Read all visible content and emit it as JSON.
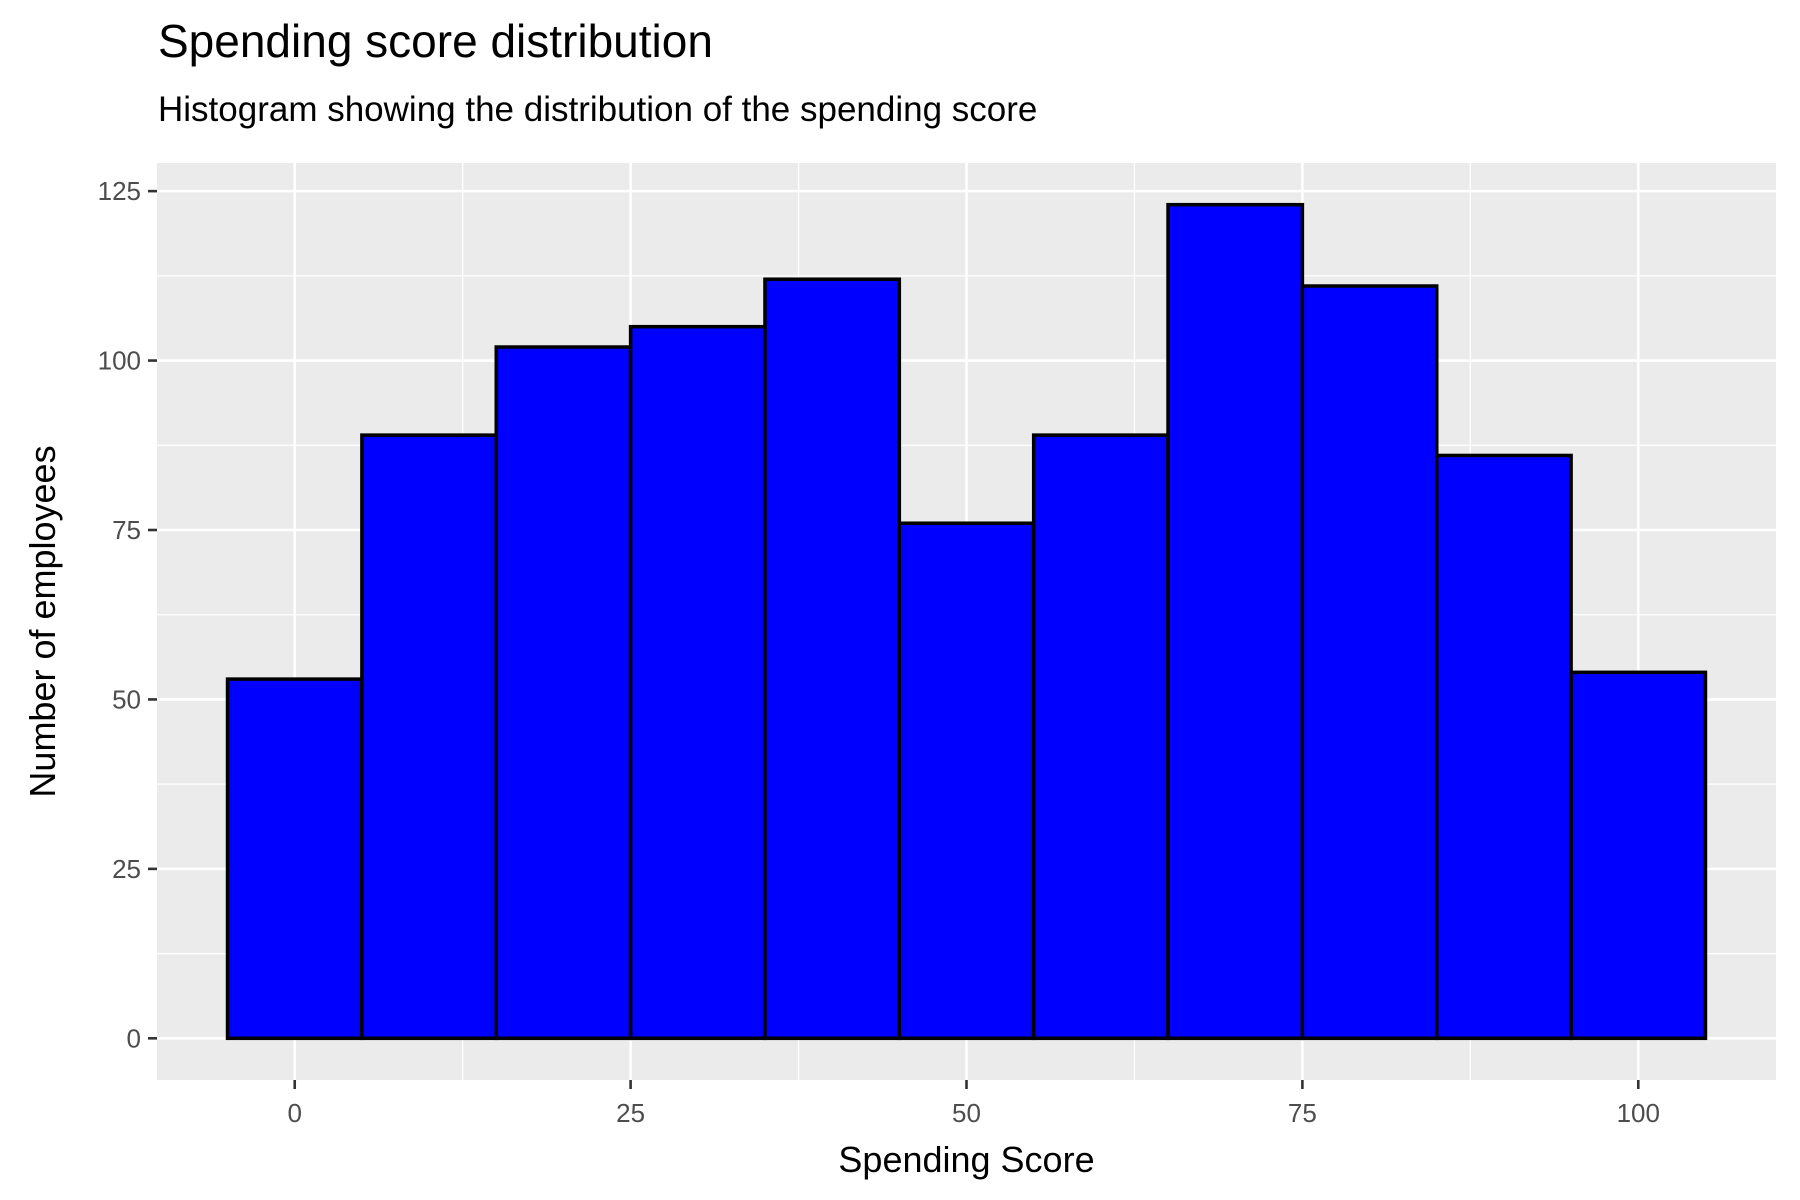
{
  "chart_data": {
    "type": "bar",
    "title": "Spending score distribution",
    "subtitle": "Histogram showing the distribution of the spending score",
    "xlabel": "Spending Score",
    "ylabel": "Number of employees",
    "bin_width": 10,
    "bins": [
      {
        "start": -5,
        "end": 5,
        "value": 53
      },
      {
        "start": 5,
        "end": 15,
        "value": 89
      },
      {
        "start": 15,
        "end": 25,
        "value": 102
      },
      {
        "start": 25,
        "end": 35,
        "value": 105
      },
      {
        "start": 35,
        "end": 45,
        "value": 112
      },
      {
        "start": 45,
        "end": 55,
        "value": 76
      },
      {
        "start": 55,
        "end": 65,
        "value": 89
      },
      {
        "start": 65,
        "end": 75,
        "value": 123
      },
      {
        "start": 75,
        "end": 85,
        "value": 111
      },
      {
        "start": 85,
        "end": 95,
        "value": 86
      },
      {
        "start": 95,
        "end": 105,
        "value": 54
      }
    ],
    "x_ticks": [
      "0",
      "25",
      "50",
      "75",
      "100"
    ],
    "y_ticks": [
      "0",
      "25",
      "50",
      "75",
      "100",
      "125"
    ],
    "xlim": [
      -10.25,
      110.25
    ],
    "ylim": [
      -6.15,
      129.15
    ],
    "grid": true,
    "bar_fill": "#0000FF",
    "bar_outline": "#000000",
    "panel_background": "#EBEBEB",
    "grid_color": "#FFFFFF"
  }
}
